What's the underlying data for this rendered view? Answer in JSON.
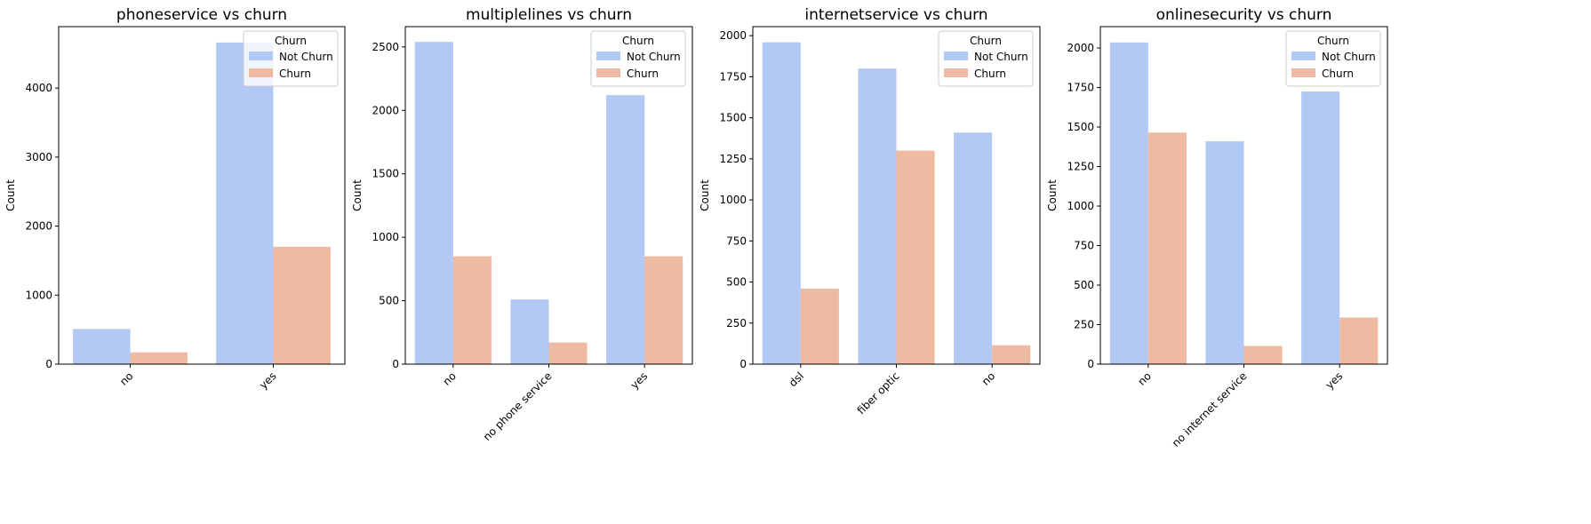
{
  "colors": {
    "not_churn": "#b3c9f5",
    "churn": "#eebaa2"
  },
  "chart_data": [
    {
      "type": "bar",
      "title": "phoneservice vs churn",
      "xlabel": "",
      "ylabel": "Count",
      "categories": [
        "no",
        "yes"
      ],
      "series": [
        {
          "name": "Not Churn",
          "values": [
            510,
            4660
          ]
        },
        {
          "name": "Churn",
          "values": [
            170,
            1700
          ]
        }
      ],
      "ylim": [
        0,
        4890
      ],
      "yticks": [
        0,
        1000,
        2000,
        3000,
        4000
      ],
      "legend": {
        "title": "Churn",
        "placement": "top-right"
      },
      "grid": false
    },
    {
      "type": "bar",
      "title": "multiplelines vs churn",
      "xlabel": "",
      "ylabel": "Count",
      "categories": [
        "no",
        "no phone service",
        "yes"
      ],
      "series": [
        {
          "name": "Not Churn",
          "values": [
            2540,
            510,
            2120
          ]
        },
        {
          "name": "Churn",
          "values": [
            850,
            170,
            850
          ]
        }
      ],
      "ylim": [
        0,
        2660
      ],
      "yticks": [
        0,
        500,
        1000,
        1500,
        2000,
        2500
      ],
      "legend": {
        "title": "Churn",
        "placement": "top-right"
      },
      "grid": false
    },
    {
      "type": "bar",
      "title": "internetservice vs churn",
      "xlabel": "",
      "ylabel": "Count",
      "categories": [
        "dsl",
        "fiber optic",
        "no"
      ],
      "series": [
        {
          "name": "Not Churn",
          "values": [
            1960,
            1800,
            1410
          ]
        },
        {
          "name": "Churn",
          "values": [
            460,
            1300,
            115
          ]
        }
      ],
      "ylim": [
        0,
        2055
      ],
      "yticks": [
        0,
        250,
        500,
        750,
        1000,
        1250,
        1500,
        1750,
        2000
      ],
      "legend": {
        "title": "Churn",
        "placement": "top-right"
      },
      "grid": false
    },
    {
      "type": "bar",
      "title": "onlinesecurity vs churn",
      "xlabel": "",
      "ylabel": "Count",
      "categories": [
        "no",
        "no internet service",
        "yes"
      ],
      "series": [
        {
          "name": "Not Churn",
          "values": [
            2035,
            1410,
            1725
          ]
        },
        {
          "name": "Churn",
          "values": [
            1465,
            115,
            295
          ]
        }
      ],
      "ylim": [
        0,
        2135
      ],
      "yticks": [
        0,
        250,
        500,
        750,
        1000,
        1250,
        1500,
        1750,
        2000
      ],
      "legend": {
        "title": "Churn",
        "placement": "top-right"
      },
      "grid": false
    }
  ]
}
